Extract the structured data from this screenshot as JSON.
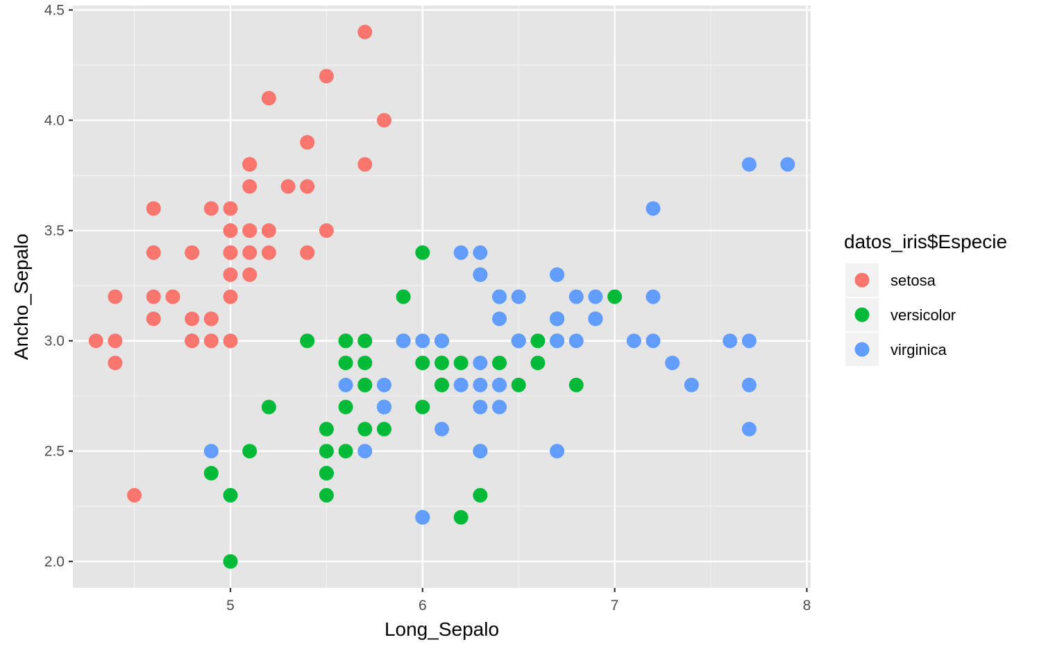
{
  "chart_data": {
    "type": "scatter",
    "xlabel": "Long_Sepalo",
    "ylabel": "Ancho_Sepalo",
    "xlim": [
      4.18,
      8.02
    ],
    "ylim": [
      1.88,
      4.52
    ],
    "x_ticks": [
      5,
      6,
      7,
      8
    ],
    "x_tick_labels": [
      "5",
      "6",
      "7",
      "8"
    ],
    "y_ticks": [
      2.0,
      2.5,
      3.0,
      3.5,
      4.0,
      4.5
    ],
    "y_tick_labels": [
      "2.0",
      "2.5",
      "3.0",
      "3.5",
      "4.0",
      "4.5"
    ],
    "grid": true,
    "background": "#e5e5e5",
    "legend": {
      "title": "datos_iris$Especie",
      "position": "right"
    },
    "series": [
      {
        "name": "setosa",
        "color": "#f8766d",
        "points": [
          [
            5.1,
            3.5
          ],
          [
            4.9,
            3.0
          ],
          [
            4.7,
            3.2
          ],
          [
            4.6,
            3.1
          ],
          [
            5.0,
            3.6
          ],
          [
            5.4,
            3.9
          ],
          [
            4.6,
            3.4
          ],
          [
            5.0,
            3.4
          ],
          [
            4.4,
            2.9
          ],
          [
            4.9,
            3.1
          ],
          [
            5.4,
            3.7
          ],
          [
            4.8,
            3.4
          ],
          [
            4.8,
            3.0
          ],
          [
            4.3,
            3.0
          ],
          [
            5.8,
            4.0
          ],
          [
            5.7,
            4.4
          ],
          [
            5.4,
            3.9
          ],
          [
            5.1,
            3.5
          ],
          [
            5.7,
            3.8
          ],
          [
            5.1,
            3.8
          ],
          [
            5.4,
            3.4
          ],
          [
            5.1,
            3.7
          ],
          [
            4.6,
            3.6
          ],
          [
            5.1,
            3.3
          ],
          [
            4.8,
            3.4
          ],
          [
            5.0,
            3.0
          ],
          [
            5.0,
            3.4
          ],
          [
            5.2,
            3.5
          ],
          [
            5.2,
            3.4
          ],
          [
            4.7,
            3.2
          ],
          [
            4.8,
            3.1
          ],
          [
            5.4,
            3.4
          ],
          [
            5.2,
            4.1
          ],
          [
            5.5,
            4.2
          ],
          [
            4.9,
            3.1
          ],
          [
            5.0,
            3.2
          ],
          [
            5.5,
            3.5
          ],
          [
            4.9,
            3.6
          ],
          [
            4.4,
            3.0
          ],
          [
            5.1,
            3.4
          ],
          [
            5.0,
            3.5
          ],
          [
            4.5,
            2.3
          ],
          [
            4.4,
            3.2
          ],
          [
            5.0,
            3.5
          ],
          [
            5.1,
            3.8
          ],
          [
            4.8,
            3.0
          ],
          [
            5.1,
            3.8
          ],
          [
            4.6,
            3.2
          ],
          [
            5.3,
            3.7
          ],
          [
            5.0,
            3.3
          ]
        ]
      },
      {
        "name": "versicolor",
        "color": "#00ba38",
        "points": [
          [
            7.0,
            3.2
          ],
          [
            6.4,
            3.2
          ],
          [
            6.9,
            3.1
          ],
          [
            5.5,
            2.3
          ],
          [
            6.5,
            2.8
          ],
          [
            5.7,
            2.8
          ],
          [
            6.3,
            3.3
          ],
          [
            4.9,
            2.4
          ],
          [
            6.6,
            2.9
          ],
          [
            5.2,
            2.7
          ],
          [
            5.0,
            2.0
          ],
          [
            5.9,
            3.0
          ],
          [
            6.0,
            2.2
          ],
          [
            6.1,
            2.9
          ],
          [
            5.6,
            2.9
          ],
          [
            6.7,
            3.1
          ],
          [
            5.6,
            3.0
          ],
          [
            5.8,
            2.7
          ],
          [
            6.2,
            2.2
          ],
          [
            5.6,
            2.5
          ],
          [
            5.9,
            3.2
          ],
          [
            6.1,
            2.8
          ],
          [
            6.3,
            2.5
          ],
          [
            6.1,
            2.8
          ],
          [
            6.4,
            2.9
          ],
          [
            6.6,
            3.0
          ],
          [
            6.8,
            2.8
          ],
          [
            6.7,
            3.0
          ],
          [
            6.0,
            2.9
          ],
          [
            5.7,
            2.6
          ],
          [
            5.5,
            2.4
          ],
          [
            5.5,
            2.4
          ],
          [
            5.8,
            2.7
          ],
          [
            6.0,
            2.7
          ],
          [
            5.4,
            3.0
          ],
          [
            6.0,
            3.4
          ],
          [
            6.7,
            3.1
          ],
          [
            6.3,
            2.3
          ],
          [
            5.6,
            3.0
          ],
          [
            5.5,
            2.5
          ],
          [
            5.5,
            2.6
          ],
          [
            6.1,
            3.0
          ],
          [
            5.8,
            2.6
          ],
          [
            5.0,
            2.3
          ],
          [
            5.6,
            2.7
          ],
          [
            5.7,
            3.0
          ],
          [
            5.7,
            2.9
          ],
          [
            6.2,
            2.9
          ],
          [
            5.1,
            2.5
          ],
          [
            5.7,
            2.8
          ]
        ]
      },
      {
        "name": "virginica",
        "color": "#619cff",
        "points": [
          [
            6.3,
            3.3
          ],
          [
            5.8,
            2.7
          ],
          [
            7.1,
            3.0
          ],
          [
            6.3,
            2.9
          ],
          [
            6.5,
            3.0
          ],
          [
            7.6,
            3.0
          ],
          [
            4.9,
            2.5
          ],
          [
            7.3,
            2.9
          ],
          [
            6.7,
            2.5
          ],
          [
            7.2,
            3.6
          ],
          [
            6.5,
            3.2
          ],
          [
            6.4,
            2.7
          ],
          [
            6.8,
            3.0
          ],
          [
            5.7,
            2.5
          ],
          [
            5.8,
            2.8
          ],
          [
            6.4,
            3.2
          ],
          [
            6.5,
            3.0
          ],
          [
            7.7,
            3.8
          ],
          [
            7.7,
            2.6
          ],
          [
            6.0,
            2.2
          ],
          [
            6.9,
            3.2
          ],
          [
            5.6,
            2.8
          ],
          [
            7.7,
            2.8
          ],
          [
            6.3,
            2.7
          ],
          [
            6.7,
            3.3
          ],
          [
            7.2,
            3.2
          ],
          [
            6.2,
            2.8
          ],
          [
            6.1,
            3.0
          ],
          [
            6.4,
            2.8
          ],
          [
            7.2,
            3.0
          ],
          [
            7.4,
            2.8
          ],
          [
            7.9,
            3.8
          ],
          [
            6.4,
            2.8
          ],
          [
            6.3,
            2.8
          ],
          [
            6.1,
            2.6
          ],
          [
            7.7,
            3.0
          ],
          [
            6.3,
            3.4
          ],
          [
            6.4,
            3.1
          ],
          [
            6.0,
            3.0
          ],
          [
            6.9,
            3.1
          ],
          [
            6.7,
            3.1
          ],
          [
            6.9,
            3.1
          ],
          [
            5.8,
            2.7
          ],
          [
            6.8,
            3.2
          ],
          [
            6.7,
            3.3
          ],
          [
            6.7,
            3.0
          ],
          [
            6.3,
            2.5
          ],
          [
            6.5,
            3.0
          ],
          [
            6.2,
            3.4
          ],
          [
            5.9,
            3.0
          ]
        ]
      }
    ]
  }
}
